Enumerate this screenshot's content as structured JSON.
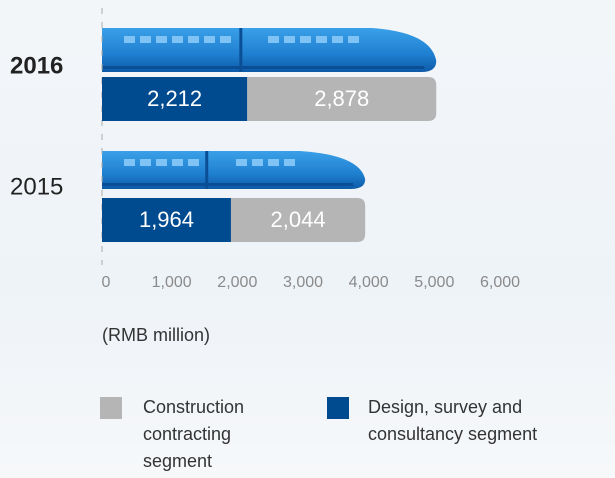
{
  "chart_data": {
    "type": "stacked_hbar",
    "categories": [
      "2016",
      "2015"
    ],
    "bold_category": "2016",
    "series": [
      {
        "name": "Design, survey and consultancy segment",
        "color": "#004a8f",
        "values": [
          2212,
          1964
        ],
        "value_labels": [
          "2,212",
          "1,964"
        ]
      },
      {
        "name": "Construction contracting segment",
        "color": "#b5b5b5",
        "values": [
          2878,
          2044
        ],
        "value_labels": [
          "2,878",
          "2,044"
        ]
      }
    ],
    "xlim": [
      0,
      6000
    ],
    "xticks": [
      0,
      {
        "value": 1000,
        "label": "1,000"
      },
      {
        "value": 2000,
        "label": "2,000"
      },
      {
        "value": 3000,
        "label": "3,000"
      },
      {
        "value": 4000,
        "label": "4,000"
      },
      {
        "value": 5000,
        "label": "5,000"
      },
      {
        "value": 6000,
        "label": "6,000"
      }
    ],
    "x_label": "(RMB million)"
  }
}
